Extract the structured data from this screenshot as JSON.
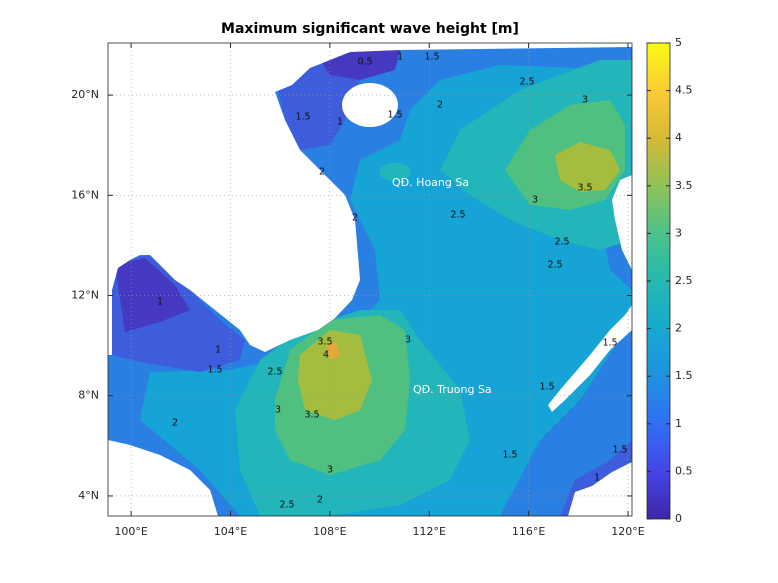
{
  "chart_data": {
    "type": "contour-map",
    "title": "Maximum significant wave height [m]",
    "xlim": [
      99.07,
      120.16
    ],
    "ylim": [
      3.2,
      22.08
    ],
    "xticks": [
      {
        "value": 100,
        "label": "100°E"
      },
      {
        "value": 104,
        "label": "104°E"
      },
      {
        "value": 108,
        "label": "108°E"
      },
      {
        "value": 112,
        "label": "112°E"
      },
      {
        "value": 116,
        "label": "116°E"
      },
      {
        "value": 120,
        "label": "120°E"
      }
    ],
    "yticks": [
      {
        "value": 4,
        "label": "4°N"
      },
      {
        "value": 8,
        "label": "8°N"
      },
      {
        "value": 12,
        "label": "12°N"
      },
      {
        "value": 16,
        "label": "16°N"
      },
      {
        "value": 20,
        "label": "20°N"
      }
    ],
    "grid": true,
    "clim": [
      0,
      5
    ],
    "cticks": [
      0,
      0.5,
      1,
      1.5,
      2,
      2.5,
      3,
      3.5,
      4,
      4.5,
      5
    ],
    "colormap": [
      "#3e26a8",
      "#4545e8",
      "#2f70f4",
      "#1f92e0",
      "#16aad0",
      "#25b9b0",
      "#4bc28a",
      "#8fc256",
      "#d6b935",
      "#fbcb35",
      "#f9fb15"
    ],
    "annotations": [
      "QĐ. Hoang Sa",
      "QĐ. Truong Sa"
    ],
    "contour_labels": [
      0.5,
      1.5,
      1,
      1.5,
      1,
      1.5,
      2,
      2.5,
      3,
      2,
      2,
      2.5,
      3,
      3.5,
      2.5,
      2.5,
      1,
      1,
      1.5,
      2.5,
      3.5,
      4,
      3,
      3,
      3.5,
      2,
      3,
      2.5,
      2,
      1.5,
      1.5,
      1,
      1.5,
      1.5
    ]
  }
}
